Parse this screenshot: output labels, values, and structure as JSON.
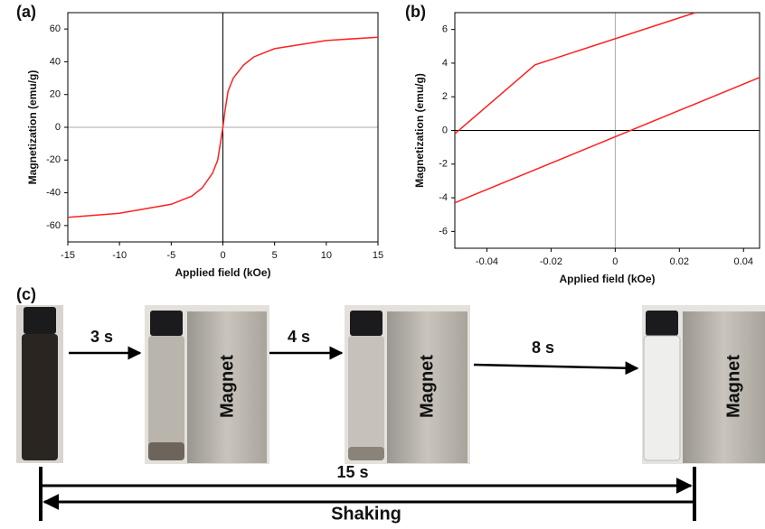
{
  "chart_data": [
    {
      "type": "line",
      "panel_label": "(a)",
      "x_label": "Applied field (kOe)",
      "y_label": "Magnetization (emu/g)",
      "xlim": [
        -15,
        15
      ],
      "ylim": [
        -70,
        70
      ],
      "xticks": [
        -15,
        -10,
        -5,
        0,
        5,
        10,
        15
      ],
      "yticks": [
        -60,
        -40,
        -20,
        0,
        20,
        40,
        60
      ],
      "series": [
        {
          "color": "#ff2020",
          "x": [
            -15,
            -10,
            -5,
            -3,
            -2,
            -1,
            -0.5,
            -0.2,
            0,
            0.2,
            0.5,
            1,
            2,
            3,
            5,
            10,
            15
          ],
          "values": [
            -55,
            -52.5,
            -47,
            -42,
            -37,
            -28,
            -20,
            -8,
            0,
            10,
            22,
            30,
            38,
            43,
            48,
            53,
            55
          ]
        }
      ]
    },
    {
      "type": "line",
      "panel_label": "(b)",
      "x_label": "Applied field (kOe)",
      "y_label": "Magnetization (emu/g)",
      "xlim": [
        -0.05,
        0.045
      ],
      "ylim": [
        -7,
        7
      ],
      "xticks": [
        -0.04,
        -0.02,
        0,
        0.02,
        0.04
      ],
      "yticks": [
        -6,
        -4,
        -2,
        0,
        2,
        4,
        6
      ],
      "series": [
        {
          "color": "#ff2020",
          "x": [
            -0.05,
            -0.025,
            0.025
          ],
          "values": [
            -0.2,
            3.9,
            7
          ]
        },
        {
          "color": "#ff2020",
          "x": [
            -0.05,
            -0.045,
            0.045
          ],
          "values": [
            -4.3,
            -3.9,
            3.15
          ]
        }
      ]
    }
  ],
  "panel_c": {
    "label": "(c)",
    "steps": [
      "3 s",
      "4 s",
      "8 s"
    ],
    "magnet": "Magnet",
    "total": "15 s",
    "action": "Shaking"
  }
}
